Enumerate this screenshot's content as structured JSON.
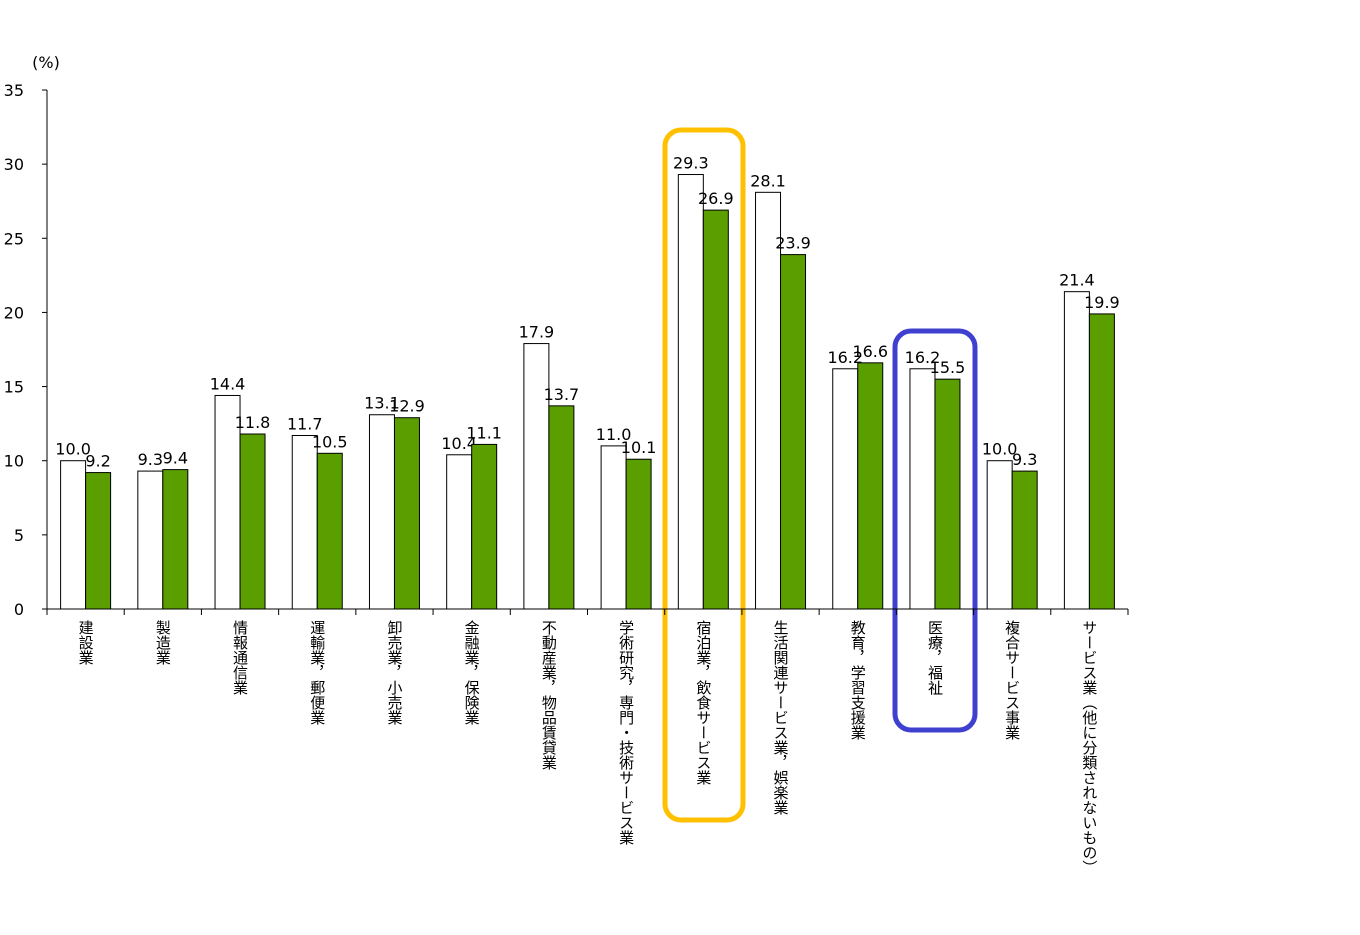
{
  "chart_data": {
    "type": "bar",
    "y_axis_label": "(%)",
    "categories": [
      "建設業",
      "製造業",
      "情報通信業",
      "運輸業，郵便業",
      "卸売業，小売業",
      "金融業，保険業",
      "不動産業，物品賃貸業",
      "学術研究，専門・技術サービス業",
      "宿泊業，飲食サービス業",
      "生活関連サービス業，娯楽業",
      "教育，学習支援業",
      "医療，福祉",
      "複合サービス事業",
      "サービス業（他に分類されないもの）"
    ],
    "series": [
      {
        "color": "#ffffff",
        "values": [
          10.0,
          9.3,
          14.4,
          11.7,
          13.1,
          10.4,
          17.9,
          11.0,
          29.3,
          28.1,
          16.2,
          16.2,
          10.0,
          21.4
        ],
        "value_labels": [
          "10.0",
          "9.3",
          "14.4",
          "11.7",
          "13.1",
          "10.4",
          "17.9",
          "11.0",
          "29.3",
          "28.1",
          "16.2",
          "16.2",
          "10.0",
          "21.4"
        ]
      },
      {
        "color": "#5a9e00",
        "values": [
          9.2,
          9.4,
          11.8,
          10.5,
          12.9,
          11.1,
          13.7,
          10.1,
          26.9,
          23.9,
          16.6,
          15.5,
          9.3,
          19.9
        ],
        "value_labels": [
          "9.2",
          "9.4",
          "11.8",
          "10.5",
          "12.9",
          "11.1",
          "13.7",
          "10.1",
          "26.9",
          "23.9",
          "16.6",
          "15.5",
          "9.3",
          "19.9"
        ]
      }
    ],
    "ylim": [
      0,
      35
    ],
    "yticks": [
      0,
      5,
      10,
      15,
      20,
      25,
      30,
      35
    ]
  }
}
